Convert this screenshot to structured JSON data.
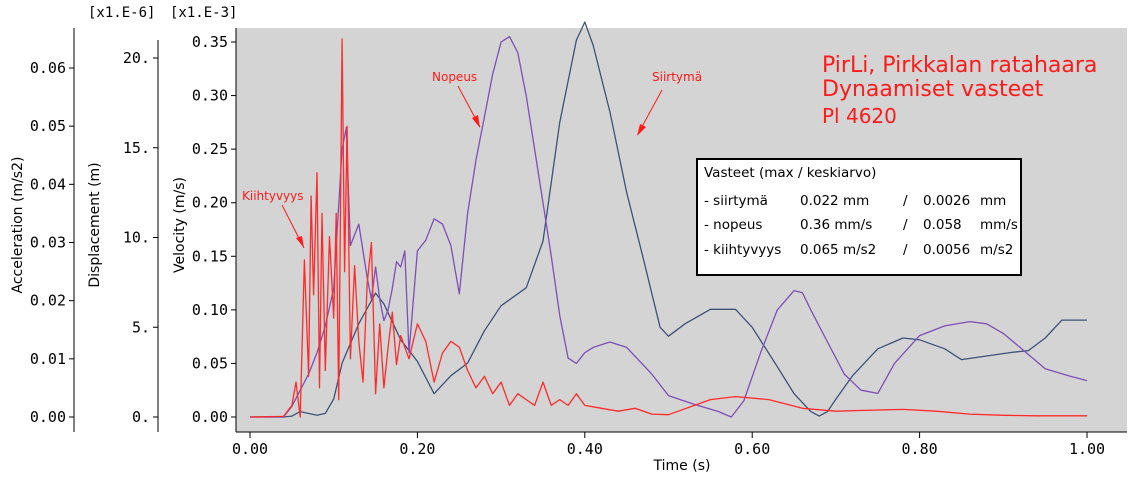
{
  "chart_data": {
    "type": "line",
    "title_lines": [
      "PirLi, Pirkkalan ratahaara",
      "Dynaamiset vasteet",
      "Pl 4620"
    ],
    "xlabel": "Time (s)",
    "xlim": [
      0,
      1.0
    ],
    "x_ticks": [
      "0.00",
      "0.20",
      "0.40",
      "0.60",
      "0.80",
      "1.00"
    ],
    "axes": {
      "velocity": {
        "label": "Velocity (m/s)",
        "scale": "[x1.E-3]",
        "ylim": [
          0,
          0.36
        ],
        "ticks": [
          "0.00",
          "0.05",
          "0.10",
          "0.15",
          "0.20",
          "0.25",
          "0.30",
          "0.35"
        ]
      },
      "displacement": {
        "label": "Displacement (m)",
        "scale": "[x1.E-6]",
        "ylim": [
          0,
          22.5
        ],
        "ticks": [
          "0.",
          "5.",
          "10.",
          "15.",
          "20."
        ]
      },
      "acceleration": {
        "label": "Acceleration (m/s2)",
        "ylim": [
          0,
          0.066
        ],
        "ticks": [
          "0.00",
          "0.01",
          "0.02",
          "0.03",
          "0.04",
          "0.05",
          "0.06"
        ]
      }
    },
    "annotations": [
      "Kiihtyvyys",
      "Nopeus",
      "Siirtymä"
    ],
    "series": [
      {
        "name": "Siirtymä",
        "axis": "displacement",
        "color": "#3c5278",
        "x": [
          0,
          0.04,
          0.05,
          0.06,
          0.08,
          0.09,
          0.1,
          0.11,
          0.13,
          0.15,
          0.16,
          0.18,
          0.2,
          0.22,
          0.24,
          0.26,
          0.28,
          0.3,
          0.33,
          0.35,
          0.37,
          0.39,
          0.4,
          0.41,
          0.43,
          0.45,
          0.47,
          0.49,
          0.5,
          0.52,
          0.55,
          0.58,
          0.6,
          0.63,
          0.65,
          0.67,
          0.68,
          0.69,
          0.7,
          0.72,
          0.75,
          0.78,
          0.8,
          0.83,
          0.85,
          0.88,
          0.91,
          0.93,
          0.95,
          0.97,
          1.0
        ],
        "y": [
          0,
          0,
          0.05,
          0.3,
          0.1,
          0.2,
          1.0,
          3.0,
          5.2,
          6.9,
          6.3,
          4.3,
          3.1,
          1.3,
          2.3,
          3.0,
          4.8,
          6.2,
          7.2,
          9.8,
          16.4,
          21.0,
          22.0,
          20.7,
          17.0,
          12.5,
          8.8,
          5.0,
          4.5,
          5.2,
          6.0,
          6.0,
          5.0,
          2.8,
          1.3,
          0.3,
          0.05,
          0.3,
          1.0,
          2.3,
          3.8,
          4.4,
          4.3,
          3.8,
          3.2,
          3.4,
          3.6,
          3.7,
          4.4,
          5.4,
          5.4
        ]
      },
      {
        "name": "Nopeus",
        "axis": "velocity",
        "color": "#7d4fb6",
        "x": [
          0,
          0.04,
          0.05,
          0.06,
          0.07,
          0.08,
          0.09,
          0.1,
          0.11,
          0.115,
          0.12,
          0.13,
          0.14,
          0.145,
          0.15,
          0.155,
          0.16,
          0.165,
          0.17,
          0.175,
          0.18,
          0.185,
          0.19,
          0.2,
          0.21,
          0.22,
          0.23,
          0.24,
          0.25,
          0.26,
          0.27,
          0.28,
          0.29,
          0.3,
          0.31,
          0.32,
          0.33,
          0.34,
          0.35,
          0.36,
          0.37,
          0.38,
          0.39,
          0.4,
          0.41,
          0.43,
          0.45,
          0.48,
          0.5,
          0.53,
          0.56,
          0.575,
          0.59,
          0.61,
          0.63,
          0.65,
          0.66,
          0.67,
          0.69,
          0.71,
          0.73,
          0.75,
          0.77,
          0.8,
          0.83,
          0.86,
          0.88,
          0.9,
          0.92,
          0.95,
          0.98,
          1.0
        ],
        "y": [
          0,
          0,
          0.01,
          0.025,
          0.04,
          0.06,
          0.085,
          0.12,
          0.25,
          0.27,
          0.16,
          0.18,
          0.13,
          0.11,
          0.14,
          0.11,
          0.09,
          0.1,
          0.12,
          0.145,
          0.14,
          0.155,
          0.06,
          0.155,
          0.165,
          0.185,
          0.18,
          0.16,
          0.115,
          0.19,
          0.24,
          0.28,
          0.32,
          0.35,
          0.355,
          0.34,
          0.3,
          0.25,
          0.2,
          0.15,
          0.095,
          0.055,
          0.05,
          0.06,
          0.065,
          0.07,
          0.065,
          0.04,
          0.02,
          0.012,
          0.005,
          0.0,
          0.015,
          0.06,
          0.1,
          0.118,
          0.116,
          0.1,
          0.07,
          0.04,
          0.025,
          0.022,
          0.05,
          0.076,
          0.085,
          0.089,
          0.087,
          0.078,
          0.065,
          0.045,
          0.038,
          0.034
        ]
      },
      {
        "name": "Kiihtyvyys",
        "axis": "acceleration",
        "color": "#ff2a2a",
        "x": [
          0,
          0.04,
          0.05,
          0.055,
          0.06,
          0.065,
          0.07,
          0.073,
          0.076,
          0.08,
          0.083,
          0.086,
          0.09,
          0.095,
          0.1,
          0.103,
          0.106,
          0.11,
          0.113,
          0.116,
          0.12,
          0.125,
          0.13,
          0.135,
          0.14,
          0.145,
          0.15,
          0.155,
          0.16,
          0.165,
          0.17,
          0.175,
          0.18,
          0.19,
          0.2,
          0.21,
          0.22,
          0.23,
          0.24,
          0.25,
          0.26,
          0.27,
          0.28,
          0.29,
          0.3,
          0.31,
          0.32,
          0.33,
          0.34,
          0.35,
          0.36,
          0.37,
          0.38,
          0.39,
          0.4,
          0.42,
          0.44,
          0.46,
          0.48,
          0.5,
          0.55,
          0.58,
          0.62,
          0.66,
          0.7,
          0.75,
          0.78,
          0.82,
          0.86,
          0.9,
          0.94,
          1.0
        ],
        "y": [
          0,
          0.0001,
          0.002,
          0.006,
          0.0,
          0.027,
          0.007,
          0.038,
          0.021,
          0.042,
          0.005,
          0.035,
          0.008,
          0.031,
          0.017,
          0.035,
          0.003,
          0.065,
          0.025,
          0.05,
          0.01,
          0.026,
          0.013,
          0.006,
          0.023,
          0.03,
          0.004,
          0.016,
          0.005,
          0.012,
          0.018,
          0.009,
          0.014,
          0.01,
          0.016,
          0.013,
          0.006,
          0.011,
          0.013,
          0.012,
          0.008,
          0.005,
          0.007,
          0.004,
          0.006,
          0.002,
          0.004,
          0.003,
          0.002,
          0.006,
          0.002,
          0.003,
          0.002,
          0.004,
          0.002,
          0.0015,
          0.001,
          0.0015,
          0.0005,
          0.0004,
          0.003,
          0.0035,
          0.003,
          0.0015,
          0.001,
          0.0012,
          0.0013,
          0.001,
          0.0005,
          0.0003,
          0.0002,
          0.0002
        ]
      }
    ],
    "summary_table": {
      "header": "Vasteet (max / keskiarvo)",
      "rows": [
        {
          "label": "- siirtymä",
          "max": "0.022 mm",
          "sep": "/",
          "mean": "0.0026",
          "unit": "mm"
        },
        {
          "label": "- nopeus",
          "max": "0.36 mm/s",
          "sep": "/",
          "mean": "0.058",
          "unit": "mm/s"
        },
        {
          "label": "- kiihtyvyys",
          "max": "0.065 m/s2",
          "sep": "/",
          "mean": "0.0056",
          "unit": "m/s2"
        }
      ]
    }
  }
}
